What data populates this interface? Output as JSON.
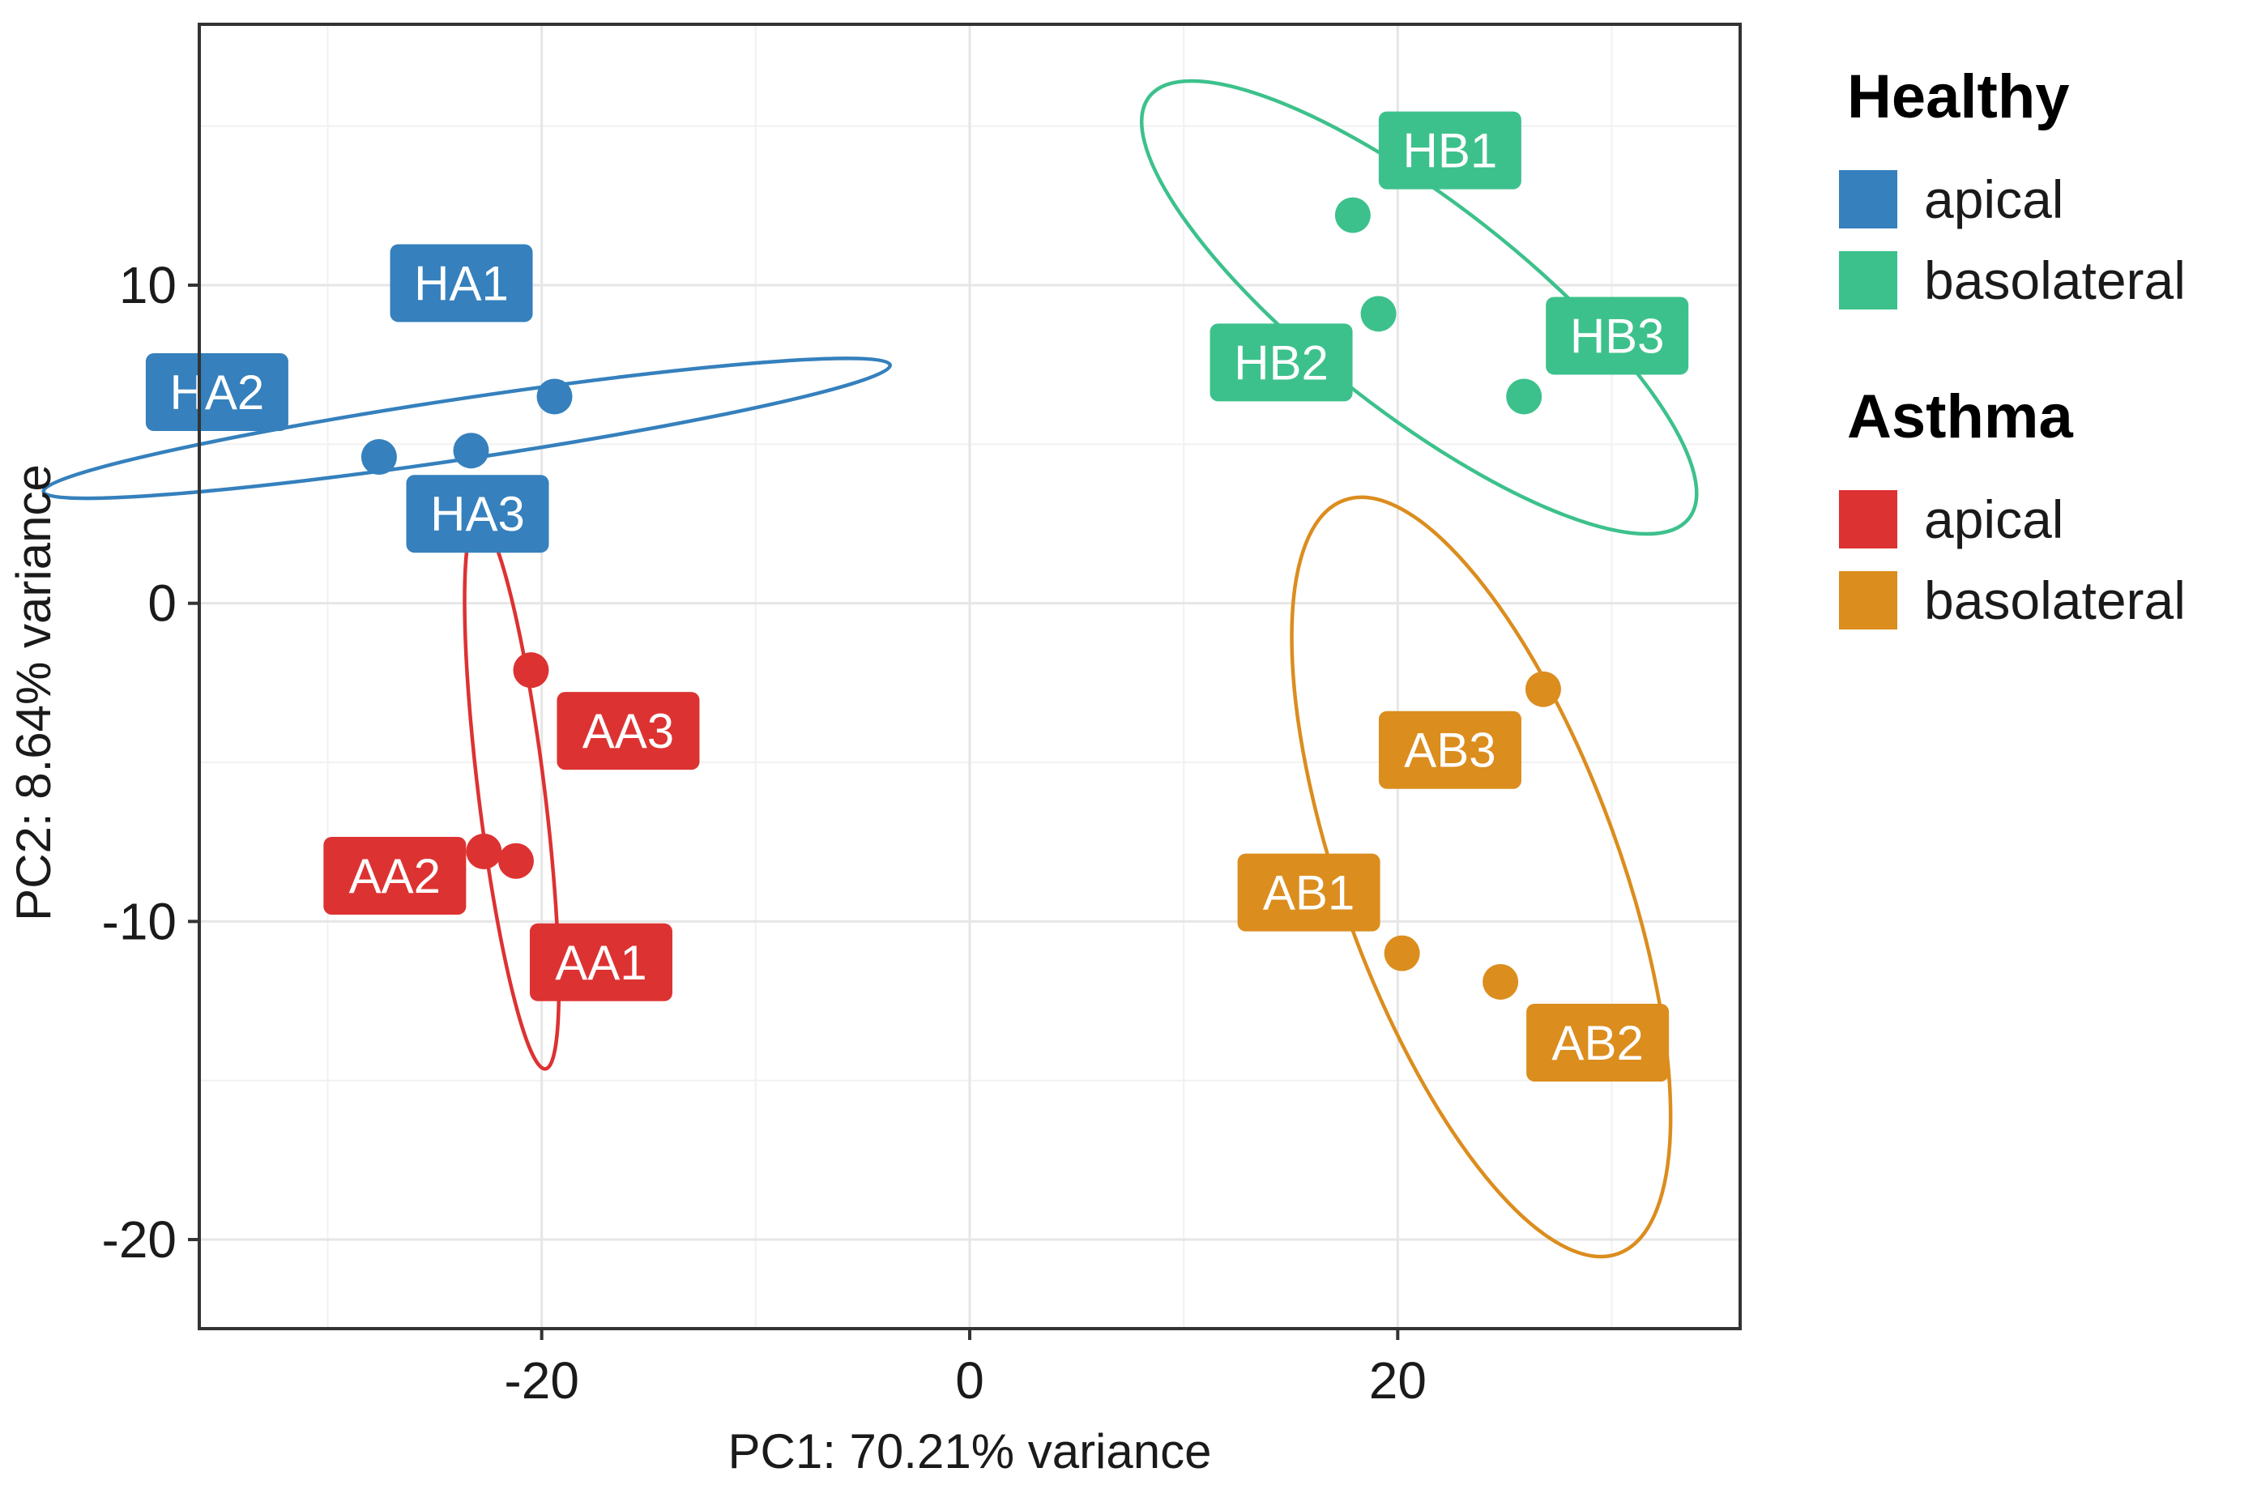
{
  "chart_data": {
    "type": "scatter",
    "title": "",
    "xlabel": "PC1: 70.21% variance",
    "ylabel": "PC2: 8.64% variance",
    "xlim": [
      -36,
      36
    ],
    "ylim": [
      -22.8,
      18.2
    ],
    "x_ticks": [
      -20,
      0,
      20
    ],
    "x_tick_labels": [
      "-20",
      "0",
      "20"
    ],
    "y_ticks": [
      -20,
      -10,
      0,
      10
    ],
    "y_tick_labels": [
      "-20",
      "-10",
      "0",
      "10"
    ],
    "grid": true,
    "legend_position": "right",
    "legend_groups": [
      {
        "title": "Healthy",
        "items": [
          {
            "label": "apical",
            "color": "#3580BD"
          },
          {
            "label": "basolateral",
            "color": "#3DC18C"
          }
        ]
      },
      {
        "title": "Asthma",
        "items": [
          {
            "label": "apical",
            "color": "#DD3232"
          },
          {
            "label": "basolateral",
            "color": "#DB8D1E"
          }
        ]
      }
    ],
    "series": [
      {
        "name": "Healthy apical",
        "color": "#3580BD",
        "points": [
          {
            "label": "HA1",
            "x": -19.4,
            "y": 6.5
          },
          {
            "label": "HA2",
            "x": -27.6,
            "y": 4.6
          },
          {
            "label": "HA3",
            "x": -23.3,
            "y": 4.8
          }
        ],
        "ellipse": {
          "center": [
            -23.5,
            5.5
          ],
          "rx": 20.0,
          "ry": 0.95,
          "angle_deg": 8.5
        }
      },
      {
        "name": "Healthy basolateral",
        "color": "#3DC18C",
        "points": [
          {
            "label": "HB1",
            "x": 17.9,
            "y": 12.2
          },
          {
            "label": "HB2",
            "x": 19.1,
            "y": 9.1
          },
          {
            "label": "HB3",
            "x": 25.9,
            "y": 6.5
          }
        ],
        "ellipse": {
          "center": [
            21.0,
            9.3
          ],
          "rx": 16.0,
          "ry": 3.3,
          "angle_deg": -38
        }
      },
      {
        "name": "Asthma apical",
        "color": "#DD3232",
        "points": [
          {
            "label": "AA1",
            "x": -21.2,
            "y": -8.1
          },
          {
            "label": "AA2",
            "x": -22.7,
            "y": -7.8
          },
          {
            "label": "AA3",
            "x": -20.5,
            "y": -2.1
          }
        ],
        "ellipse": {
          "center": [
            -21.4,
            -6.0
          ],
          "rx": 1.55,
          "ry": 8.7,
          "angle_deg": 7
        }
      },
      {
        "name": "Asthma basolateral",
        "color": "#DB8D1E",
        "points": [
          {
            "label": "AB1",
            "x": 20.2,
            "y": -11.0
          },
          {
            "label": "AB2",
            "x": 24.8,
            "y": -11.9
          },
          {
            "label": "AB3",
            "x": 26.8,
            "y": -2.7
          }
        ],
        "ellipse": {
          "center": [
            23.9,
            -8.6
          ],
          "rx": 6.5,
          "ry": 12.6,
          "angle_deg": 20
        }
      }
    ]
  }
}
